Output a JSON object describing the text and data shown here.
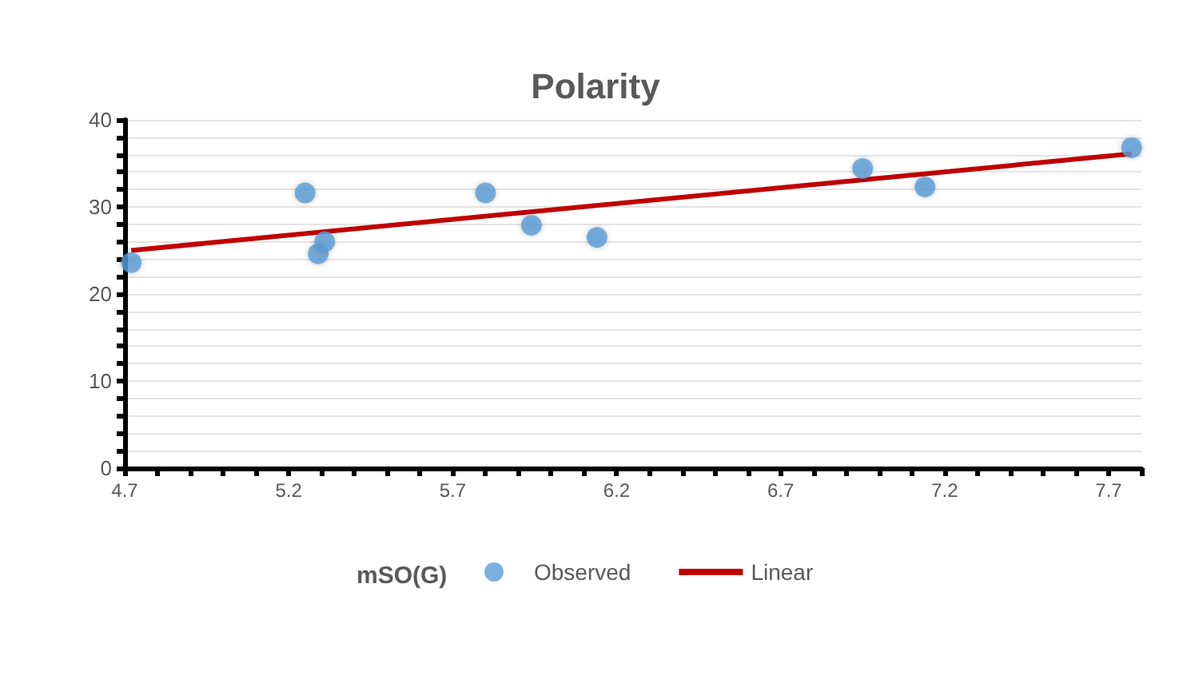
{
  "chart_data": {
    "type": "scatter",
    "title": "Polarity",
    "legend_title": "mSO(G)",
    "legend": "bottom",
    "grid": "y",
    "marker": "circle",
    "xlim": [
      4.7,
      7.8
    ],
    "ylim": [
      0,
      40
    ],
    "xticks": [
      4.7,
      {
        "value": 4.8,
        "label": null
      },
      {
        "value": 4.9,
        "label": null
      },
      {
        "value": 5.0,
        "label": null
      },
      {
        "value": 5.1,
        "label": null
      },
      5.2,
      {
        "value": 5.3,
        "label": null
      },
      {
        "value": 5.4,
        "label": null
      },
      {
        "value": 5.5,
        "label": null
      },
      {
        "value": 5.6,
        "label": null
      },
      5.7,
      {
        "value": 5.8,
        "label": null
      },
      {
        "value": 5.9,
        "label": null
      },
      {
        "value": 6.0,
        "label": null
      },
      {
        "value": 6.1,
        "label": null
      },
      6.2,
      {
        "value": 6.3,
        "label": null
      },
      {
        "value": 6.4,
        "label": null
      },
      {
        "value": 6.5,
        "label": null
      },
      {
        "value": 6.6,
        "label": null
      },
      6.7,
      {
        "value": 6.8,
        "label": null
      },
      {
        "value": 6.9,
        "label": null
      },
      {
        "value": 7.0,
        "label": null
      },
      {
        "value": 7.1,
        "label": null
      },
      7.2,
      {
        "value": 7.3,
        "label": null
      },
      {
        "value": 7.4,
        "label": null
      },
      {
        "value": 7.5,
        "label": null
      },
      {
        "value": 7.6,
        "label": null
      },
      7.7,
      {
        "value": 7.8,
        "label": null
      }
    ],
    "yticks": [
      0,
      {
        "value": 2,
        "label": null
      },
      {
        "value": 4,
        "label": null
      },
      {
        "value": 6,
        "label": null
      },
      {
        "value": 8,
        "label": null
      },
      10,
      {
        "value": 12,
        "label": null
      },
      {
        "value": 14,
        "label": null
      },
      {
        "value": 16,
        "label": null
      },
      {
        "value": 18,
        "label": null
      },
      20,
      {
        "value": 22,
        "label": null
      },
      {
        "value": 24,
        "label": null
      },
      {
        "value": 26,
        "label": null
      },
      {
        "value": 28,
        "label": null
      },
      30,
      {
        "value": 32,
        "label": null
      },
      {
        "value": 34,
        "label": null
      },
      {
        "value": 36,
        "label": null
      },
      {
        "value": 38,
        "label": null
      },
      40
    ],
    "series": [
      {
        "name": "Observed",
        "color": "#5b9bd5",
        "x": [
          4.72,
          5.25,
          5.29,
          5.31,
          5.8,
          5.94,
          6.14,
          6.95,
          7.14,
          7.77
        ],
        "values": [
          23.6,
          31.6,
          24.6,
          26.0,
          31.6,
          27.9,
          26.5,
          34.4,
          32.3,
          36.8
        ]
      },
      {
        "name": "Linear",
        "type": "line",
        "color": "#c00000",
        "marker": "none",
        "x": [
          4.72,
          7.77
        ],
        "values": [
          25.0,
          36.1
        ]
      }
    ]
  }
}
